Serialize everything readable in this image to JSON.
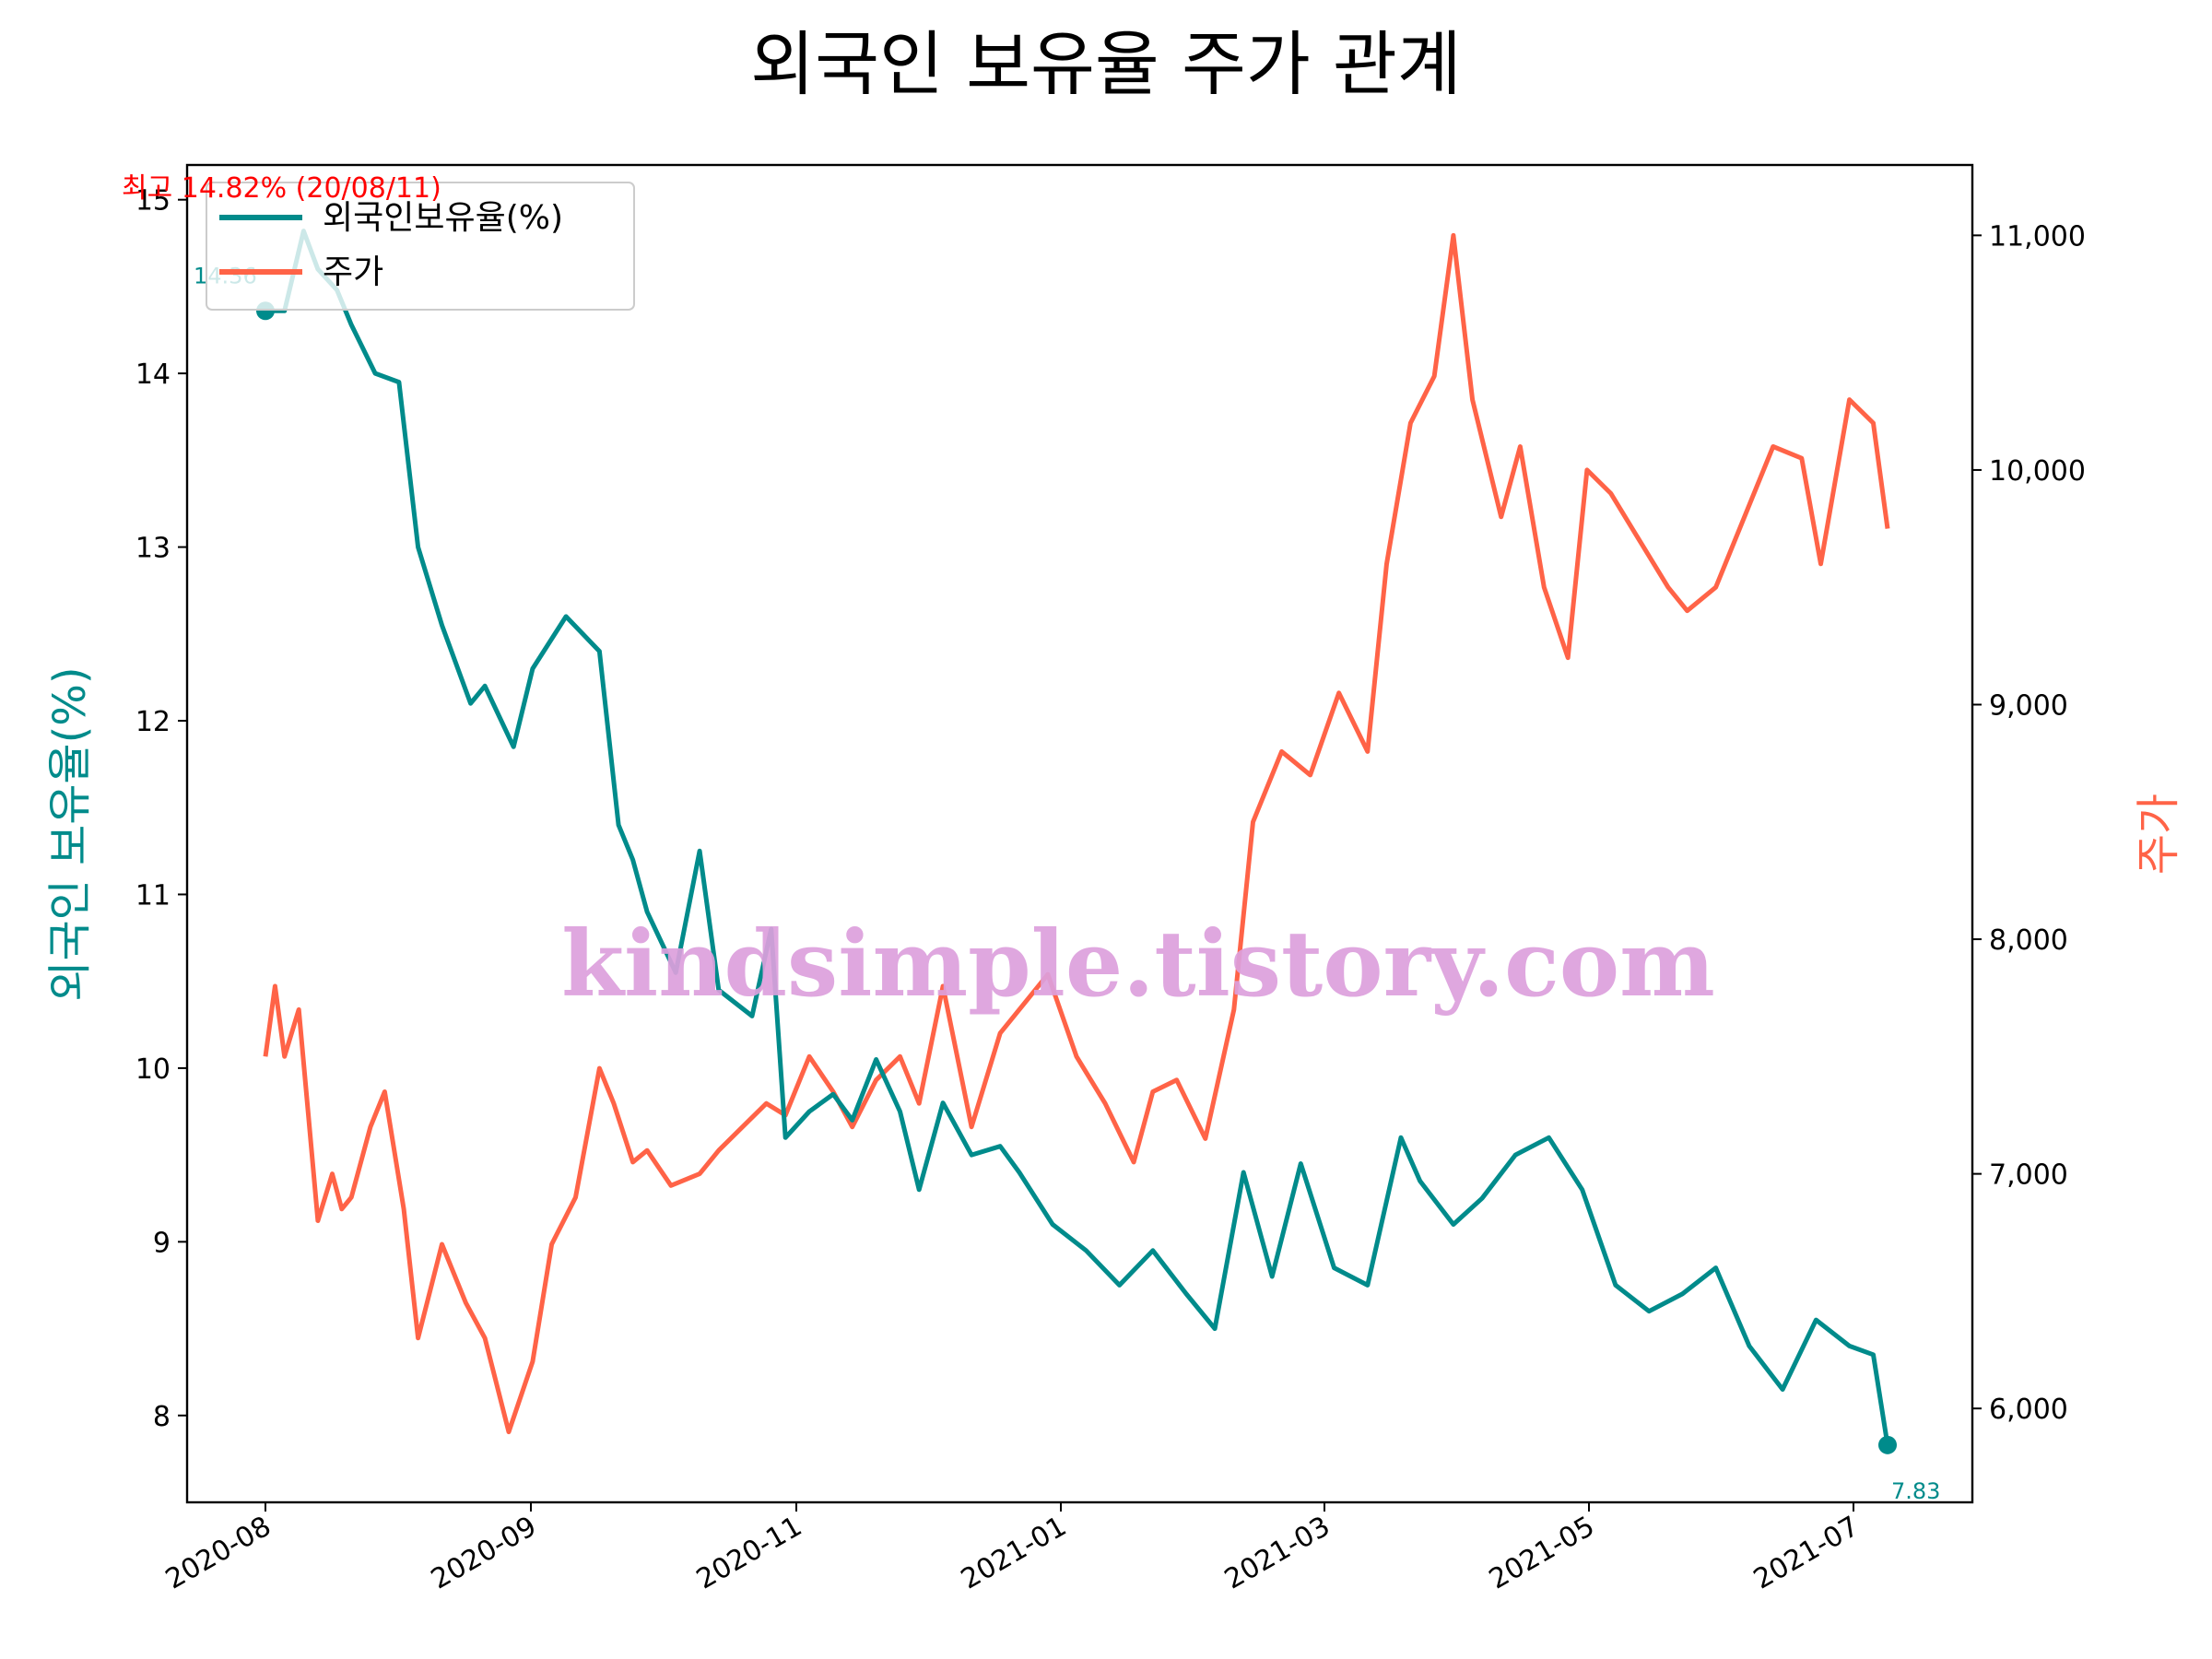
{
  "title": "외국인 보유율 주가 관계",
  "watermark": "kindsimple.tistory.com",
  "colors": {
    "foreign": "#008b8b",
    "price": "#ff6347",
    "max_annot": "#ff0000",
    "watermark": "#dda0dd"
  },
  "legend": {
    "items": [
      "외국인보유율(%)",
      "주가"
    ],
    "placement": "upper-left"
  },
  "annotations": {
    "max": "최고 14.82% (20/08/11)",
    "first_value": "14.36",
    "last_value": "7.83"
  },
  "chart_data": {
    "type": "line",
    "title": "외국인 보유율 주가 관계",
    "xlabel": "",
    "x_ticks": [
      "2020-08",
      "2020-09",
      "2020-11",
      "2021-01",
      "2021-03",
      "2021-05",
      "2021-07"
    ],
    "left_axis": {
      "label": "외국인 보유율(%)",
      "range": [
        7.5,
        15.2
      ],
      "ticks": [
        "8",
        "9",
        "10",
        "11",
        "12",
        "13",
        "14",
        "15"
      ]
    },
    "right_axis": {
      "label": "주가",
      "range": [
        5600,
        11300
      ],
      "ticks": [
        "6,000",
        "7,000",
        "8,000",
        "9,000",
        "10,000",
        "11,000"
      ]
    },
    "series": [
      {
        "name": "외국인보유율(%)",
        "axis": "left",
        "color": "#008b8b",
        "x": [
          "2020-08-03",
          "2020-08-07",
          "2020-08-11",
          "2020-08-14",
          "2020-08-18",
          "2020-08-21",
          "2020-08-26",
          "2020-08-31",
          "2020-09-04",
          "2020-09-09",
          "2020-09-15",
          "2020-09-18",
          "2020-09-24",
          "2020-09-28",
          "2020-10-05",
          "2020-10-12",
          "2020-10-16",
          "2020-10-19",
          "2020-10-22",
          "2020-10-28",
          "2020-11-02",
          "2020-11-06",
          "2020-11-13",
          "2020-11-17",
          "2020-11-20",
          "2020-11-25",
          "2020-11-30",
          "2020-12-04",
          "2020-12-09",
          "2020-12-14",
          "2020-12-18",
          "2020-12-23",
          "2020-12-29",
          "2021-01-04",
          "2021-01-08",
          "2021-01-15",
          "2021-01-22",
          "2021-01-29",
          "2021-02-05",
          "2021-02-12",
          "2021-02-18",
          "2021-02-24",
          "2021-03-02",
          "2021-03-08",
          "2021-03-15",
          "2021-03-22",
          "2021-03-29",
          "2021-04-02",
          "2021-04-09",
          "2021-04-15",
          "2021-04-22",
          "2021-04-29",
          "2021-05-06",
          "2021-05-13",
          "2021-05-20",
          "2021-05-27",
          "2021-06-03",
          "2021-06-10",
          "2021-06-17",
          "2021-06-24",
          "2021-07-01",
          "2021-07-06",
          "2021-07-09"
        ],
        "values": [
          14.36,
          14.36,
          14.82,
          14.6,
          14.48,
          14.28,
          14.0,
          13.95,
          13.0,
          12.55,
          12.1,
          12.2,
          11.85,
          12.3,
          12.6,
          12.4,
          11.4,
          11.2,
          10.9,
          10.55,
          11.25,
          10.45,
          10.3,
          10.8,
          9.6,
          9.75,
          9.85,
          9.7,
          10.05,
          9.75,
          9.3,
          9.8,
          9.5,
          9.55,
          9.4,
          9.1,
          8.95,
          8.75,
          8.95,
          8.7,
          8.5,
          9.4,
          8.8,
          9.45,
          8.85,
          8.75,
          9.6,
          9.35,
          9.1,
          9.25,
          9.5,
          9.6,
          9.3,
          8.75,
          8.6,
          8.7,
          8.85,
          8.4,
          8.15,
          8.55,
          8.4,
          8.35,
          7.83
        ]
      },
      {
        "name": "주가",
        "axis": "right",
        "color": "#ff6347",
        "x": [
          "2020-08-03",
          "2020-08-05",
          "2020-08-07",
          "2020-08-10",
          "2020-08-12",
          "2020-08-14",
          "2020-08-17",
          "2020-08-19",
          "2020-08-21",
          "2020-08-25",
          "2020-08-28",
          "2020-09-01",
          "2020-09-04",
          "2020-09-09",
          "2020-09-14",
          "2020-09-18",
          "2020-09-23",
          "2020-09-28",
          "2020-10-02",
          "2020-10-07",
          "2020-10-12",
          "2020-10-15",
          "2020-10-19",
          "2020-10-22",
          "2020-10-27",
          "2020-11-02",
          "2020-11-06",
          "2020-11-11",
          "2020-11-16",
          "2020-11-20",
          "2020-11-25",
          "2020-11-30",
          "2020-12-04",
          "2020-12-09",
          "2020-12-14",
          "2020-12-18",
          "2020-12-23",
          "2020-12-29",
          "2021-01-04",
          "2021-01-08",
          "2021-01-14",
          "2021-01-20",
          "2021-01-26",
          "2021-02-01",
          "2021-02-05",
          "2021-02-10",
          "2021-02-16",
          "2021-02-22",
          "2021-02-26",
          "2021-03-04",
          "2021-03-10",
          "2021-03-16",
          "2021-03-22",
          "2021-03-26",
          "2021-03-31",
          "2021-04-05",
          "2021-04-09",
          "2021-04-13",
          "2021-04-19",
          "2021-04-23",
          "2021-04-28",
          "2021-05-03",
          "2021-05-07",
          "2021-05-12",
          "2021-05-18",
          "2021-05-24",
          "2021-05-28",
          "2021-06-03",
          "2021-06-09",
          "2021-06-15",
          "2021-06-21",
          "2021-06-25",
          "2021-07-01",
          "2021-07-06",
          "2021-07-09"
        ],
        "values": [
          7500,
          7800,
          7500,
          7700,
          7250,
          6800,
          7000,
          6850,
          6900,
          7200,
          7350,
          6850,
          6300,
          6700,
          6450,
          6300,
          5900,
          6200,
          6700,
          6900,
          7450,
          7300,
          7050,
          7100,
          6950,
          7000,
          7100,
          7200,
          7300,
          7250,
          7500,
          7350,
          7200,
          7400,
          7500,
          7300,
          7800,
          7200,
          7600,
          7700,
          7850,
          7500,
          7300,
          7050,
          7350,
          7400,
          7150,
          7700,
          8500,
          8800,
          8700,
          9050,
          8800,
          9600,
          10200,
          10400,
          11000,
          10300,
          9800,
          10100,
          9500,
          9200,
          10000,
          9900,
          9700,
          9500,
          9400,
          9500,
          9800,
          10100,
          10050,
          9600,
          10300,
          10200,
          9750
        ]
      }
    ]
  }
}
